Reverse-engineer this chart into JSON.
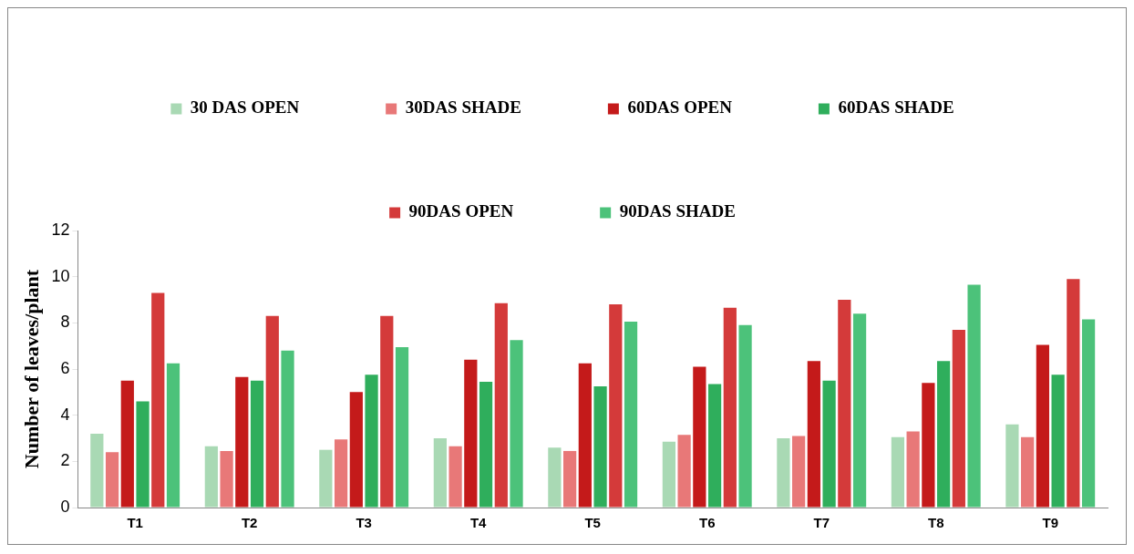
{
  "chart_data": {
    "type": "bar",
    "ylabel": "Number of leaves/plant",
    "categories": [
      "T1",
      "T2",
      "T3",
      "T4",
      "T5",
      "T6",
      "T7",
      "T8",
      "T9"
    ],
    "series": [
      {
        "name": "30 DAS OPEN",
        "color": "#a9d9b4",
        "values": [
          3.2,
          2.65,
          2.5,
          3.0,
          2.6,
          2.85,
          3.0,
          3.05,
          3.6
        ]
      },
      {
        "name": "30DAS SHADE",
        "color": "#e87878",
        "values": [
          2.4,
          2.45,
          2.95,
          2.65,
          2.45,
          3.15,
          3.1,
          3.3,
          3.05
        ]
      },
      {
        "name": "60DAS OPEN",
        "color": "#c41a1a",
        "values": [
          5.5,
          5.65,
          5.0,
          6.4,
          6.25,
          6.1,
          6.35,
          5.4,
          7.05
        ]
      },
      {
        "name": "60DAS SHADE",
        "color": "#2fae5c",
        "values": [
          4.6,
          5.5,
          5.75,
          5.45,
          5.25,
          5.35,
          5.5,
          6.35,
          5.75
        ]
      },
      {
        "name": "90DAS OPEN",
        "color": "#d43a3a",
        "values": [
          9.3,
          8.3,
          8.3,
          8.85,
          8.8,
          8.65,
          9.0,
          7.7,
          9.9
        ]
      },
      {
        "name": "90DAS SHADE",
        "color": "#4cc27a",
        "values": [
          6.25,
          6.8,
          6.95,
          7.25,
          8.05,
          7.9,
          8.4,
          9.65,
          8.15
        ]
      }
    ],
    "ylim": [
      0,
      12
    ],
    "yticks": [
      0,
      2,
      4,
      6,
      8,
      10,
      12
    ],
    "grid": false,
    "legend": "top"
  }
}
